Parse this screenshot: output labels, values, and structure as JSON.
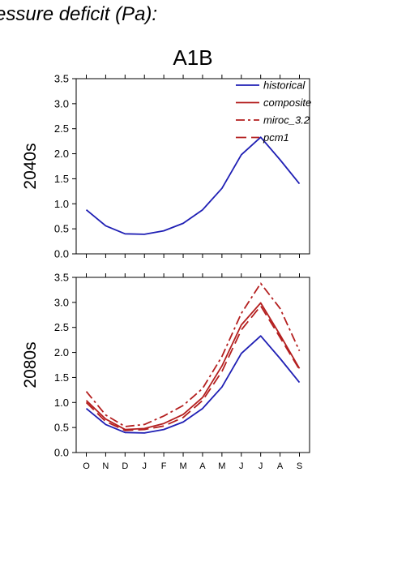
{
  "title": "essure deficit (Pa):",
  "scenario": "A1B",
  "colors": {
    "historical": "#1f1fb4",
    "future": "#b41f1f",
    "axis": "#000000"
  },
  "legend": {
    "position": "top-right of upper panel",
    "entries": [
      {
        "series": "historical",
        "label": "historical",
        "dash": "solid"
      },
      {
        "series": "composite",
        "label": "composite",
        "dash": "solid"
      },
      {
        "series": "miroc_3.2",
        "label": "miroc_3.2",
        "dash": "dashdot"
      },
      {
        "series": "pcm1",
        "label": "pcm1",
        "dash": "dashed"
      }
    ]
  },
  "chart_data": [
    {
      "type": "line",
      "panel": "2040s",
      "ylabel": "2040s",
      "categories": [
        "O",
        "N",
        "D",
        "J",
        "F",
        "M",
        "A",
        "M",
        "J",
        "J",
        "A",
        "S"
      ],
      "show_month_labels": false,
      "ylim": [
        0,
        3.5
      ],
      "yticks": [
        "0.0",
        "0.5",
        "1.0",
        "1.5",
        "2.0",
        "2.5",
        "3.0",
        "3.5"
      ],
      "grid": false,
      "series": [
        {
          "name": "historical",
          "values": [
            0.88,
            0.56,
            0.4,
            0.39,
            0.46,
            0.61,
            0.88,
            1.31,
            1.98,
            2.33,
            1.88,
            1.4
          ]
        }
      ]
    },
    {
      "type": "line",
      "panel": "2080s",
      "ylabel": "2080s",
      "categories": [
        "O",
        "N",
        "D",
        "J",
        "F",
        "M",
        "A",
        "M",
        "J",
        "J",
        "A",
        "S"
      ],
      "show_month_labels": true,
      "ylim": [
        0,
        3.5
      ],
      "yticks": [
        "0.0",
        "0.5",
        "1.0",
        "1.5",
        "2.0",
        "2.5",
        "3.0",
        "3.5"
      ],
      "grid": false,
      "series": [
        {
          "name": "historical",
          "values": [
            0.88,
            0.56,
            0.4,
            0.39,
            0.46,
            0.61,
            0.88,
            1.31,
            1.98,
            2.33,
            1.88,
            1.4
          ]
        },
        {
          "name": "composite",
          "values": [
            1.04,
            0.67,
            0.46,
            0.48,
            0.58,
            0.76,
            1.1,
            1.73,
            2.55,
            2.99,
            2.35,
            1.68
          ]
        },
        {
          "name": "miroc_3.2",
          "values": [
            1.22,
            0.75,
            0.52,
            0.56,
            0.73,
            0.94,
            1.28,
            1.92,
            2.78,
            3.38,
            2.88,
            2.03
          ]
        },
        {
          "name": "pcm1",
          "values": [
            1.0,
            0.62,
            0.44,
            0.46,
            0.53,
            0.7,
            1.04,
            1.62,
            2.45,
            2.93,
            2.3,
            1.66
          ]
        }
      ]
    }
  ]
}
